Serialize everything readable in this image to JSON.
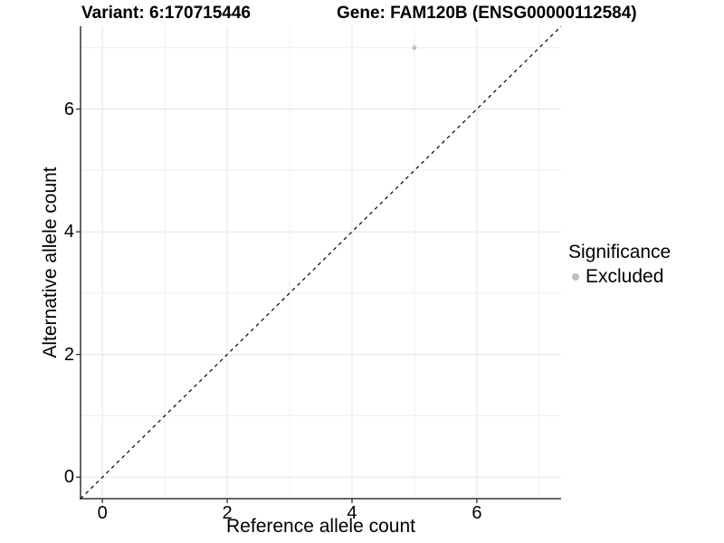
{
  "title": {
    "left": "Variant: 6:170715446",
    "right": "Gene: FAM120B (ENSG00000112584)"
  },
  "chart_data": {
    "type": "scatter",
    "xlabel": "Reference allele count",
    "ylabel": "Alternative allele count",
    "xlim": [
      -0.35,
      7.35
    ],
    "ylim": [
      -0.35,
      7.35
    ],
    "x_ticks": [
      0,
      2,
      4,
      6
    ],
    "y_ticks": [
      0,
      2,
      4,
      6
    ],
    "x_minor_gridlines": [
      1,
      3,
      5,
      7
    ],
    "y_minor_gridlines": [
      1,
      3,
      5,
      7
    ],
    "grid": true,
    "points": [
      {
        "x": 5,
        "y": 7,
        "series": "Excluded"
      }
    ],
    "reference_line": {
      "slope": 1,
      "intercept": 0,
      "style": "dashed"
    },
    "legend": {
      "title": "Significance",
      "position": "right",
      "items": [
        {
          "label": "Excluded",
          "color": "#bdbdbd"
        }
      ]
    },
    "colors": {
      "point": "#bdbdbd",
      "grid_major": "#e4e4e4",
      "grid_minor": "#efefef",
      "axis_line": "#333333",
      "tick_mark": "#333333",
      "reference_line": "#000000",
      "background": "#ffffff"
    }
  }
}
